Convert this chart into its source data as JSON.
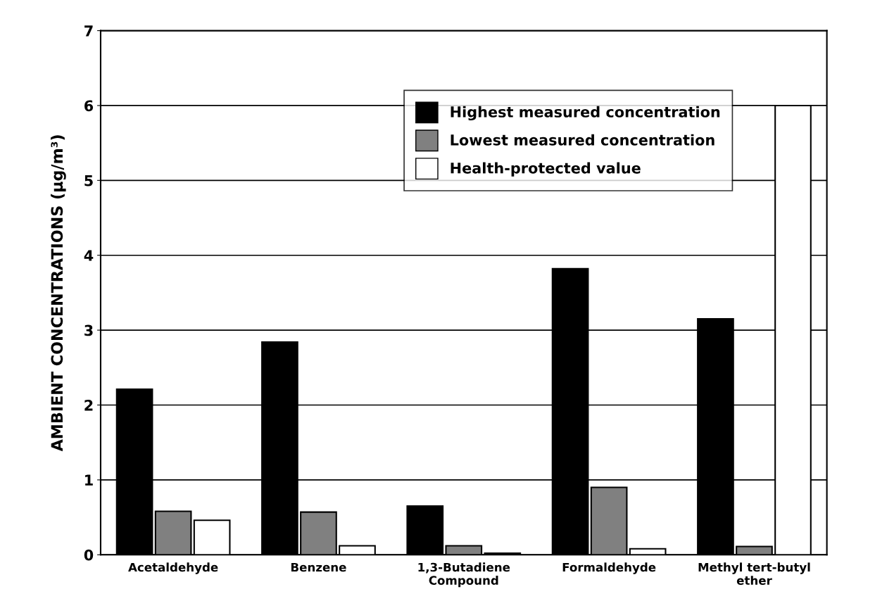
{
  "chart_data": {
    "type": "bar",
    "ylabel": "AMBIENT CONCENTRATIONS (μg/m³)",
    "categories": [
      "Acetaldehyde",
      "Benzene",
      "1,3-Butadiene\nCompound",
      "Formaldehyde",
      "Methyl tert-butyl\nether"
    ],
    "series": [
      {
        "name": "Highest measured concentration",
        "color": "#000000",
        "values": [
          2.21,
          2.84,
          0.65,
          3.82,
          3.15
        ]
      },
      {
        "name": "Lowest measured concentration",
        "color": "#808080",
        "values": [
          0.58,
          0.57,
          0.12,
          0.9,
          0.11
        ]
      },
      {
        "name": "Health-protected value",
        "color": "#ffffff",
        "values": [
          0.46,
          0.12,
          0.02,
          0.08,
          6.0
        ]
      }
    ],
    "ylim": [
      0,
      7
    ],
    "yticks": [
      0,
      1,
      2,
      3,
      4,
      5,
      6,
      7
    ],
    "grid": "y",
    "legend": "top right"
  }
}
